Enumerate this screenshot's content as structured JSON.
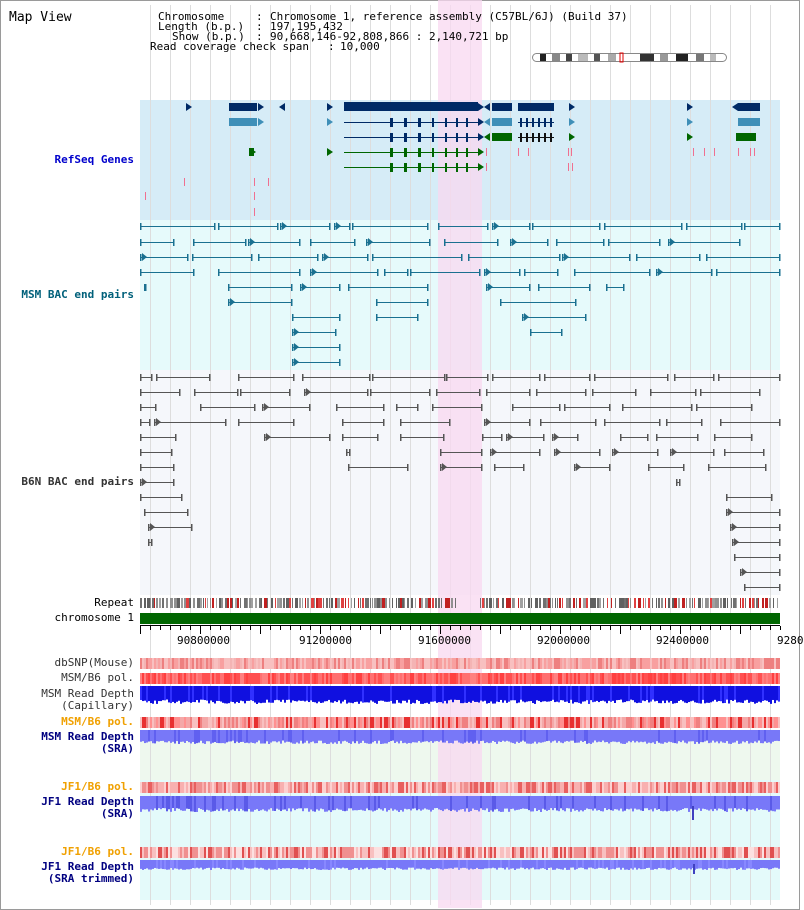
{
  "view_title": "Map View",
  "info": {
    "chromosome_label": "Chromosome",
    "chromosome_value": "Chromosome 1, reference assembly (C57BL/6J) (Build 37)",
    "length_label": "Length (b.p.)",
    "length_value": "197,195,432",
    "show_label": "Show (b.p.)",
    "show_value": "90,668,146-92,808,866 : 2,140,721 bp",
    "coverage_label": "Read coverage check span",
    "coverage_value": "10,000"
  },
  "tracks": {
    "refseq": "RefSeq Genes",
    "msm_bac": "MSM BAC end pairs",
    "b6n_bac": "B6N BAC end pairs",
    "repeat": "Repeat",
    "chromosome": "chromosome 1",
    "dbsnp": "dbSNP(Mouse)",
    "msm_b6_pol_1": "MSM/B6 pol.",
    "msm_read_depth_cap_1": "MSM Read Depth",
    "msm_read_depth_cap_2": "(Capillary)",
    "msm_b6_pol_2": "MSM/B6 pol.",
    "msm_read_depth_sra_1": "MSM Read Depth",
    "msm_read_depth_sra_2": "(SRA)",
    "jf1_b6_pol_1": "JF1/B6 pol.",
    "jf1_read_depth_sra_1": "JF1 Read Depth",
    "jf1_read_depth_sra_2": "(SRA)",
    "jf1_b6_pol_2": "JF1/B6 pol.",
    "jf1_read_depth_trim_1": "JF1 Read Depth",
    "jf1_read_depth_trim_2": "(SRA trimmed)"
  },
  "axis": {
    "ticks": [
      "90800000",
      "91200000",
      "91600000",
      "92000000",
      "92400000",
      "9280"
    ]
  },
  "colors": {
    "refseq_bg": "#d6ecf7",
    "msm_bg": "#e6fafb",
    "b6n_bg": "#f5f7fb",
    "highlight": "#f8d8f0",
    "gene_dark": "#002a66",
    "gene_mid": "#3f8fb8",
    "gene_green": "#006600",
    "chromosome_bar": "#006600",
    "depth_blue": "#1010e0",
    "depth_light": "#7878f8"
  }
}
